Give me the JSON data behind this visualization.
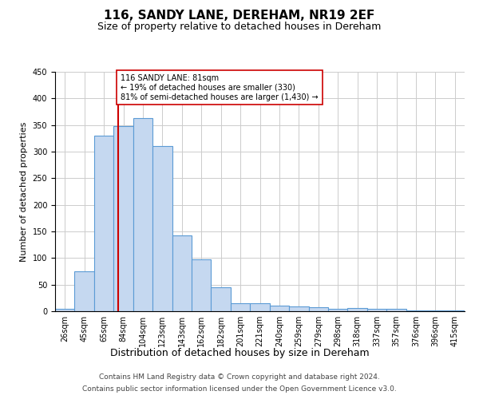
{
  "title": "116, SANDY LANE, DEREHAM, NR19 2EF",
  "subtitle": "Size of property relative to detached houses in Dereham",
  "xlabel": "Distribution of detached houses by size in Dereham",
  "ylabel": "Number of detached properties",
  "footer_line1": "Contains HM Land Registry data © Crown copyright and database right 2024.",
  "footer_line2": "Contains public sector information licensed under the Open Government Licence v3.0.",
  "categories": [
    "26sqm",
    "45sqm",
    "65sqm",
    "84sqm",
    "104sqm",
    "123sqm",
    "143sqm",
    "162sqm",
    "182sqm",
    "201sqm",
    "221sqm",
    "240sqm",
    "259sqm",
    "279sqm",
    "298sqm",
    "318sqm",
    "337sqm",
    "357sqm",
    "376sqm",
    "396sqm",
    "415sqm"
  ],
  "values": [
    5,
    75,
    330,
    348,
    363,
    310,
    142,
    98,
    45,
    15,
    15,
    10,
    9,
    8,
    4,
    6,
    4,
    4,
    1,
    1,
    2
  ],
  "bar_color": "#c5d8f0",
  "bar_edge_color": "#5b9bd5",
  "bar_edge_width": 0.8,
  "property_line_color": "#cc0000",
  "annotation_text": "116 SANDY LANE: 81sqm\n← 19% of detached houses are smaller (330)\n81% of semi-detached houses are larger (1,430) →",
  "annotation_box_color": "#ffffff",
  "annotation_box_edge_color": "#cc0000",
  "ylim": [
    0,
    450
  ],
  "yticks": [
    0,
    50,
    100,
    150,
    200,
    250,
    300,
    350,
    400,
    450
  ],
  "grid_color": "#cccccc",
  "title_fontsize": 11,
  "subtitle_fontsize": 9,
  "ylabel_fontsize": 8,
  "xlabel_fontsize": 9,
  "tick_fontsize": 7,
  "annotation_fontsize": 7,
  "footer_fontsize": 6.5
}
